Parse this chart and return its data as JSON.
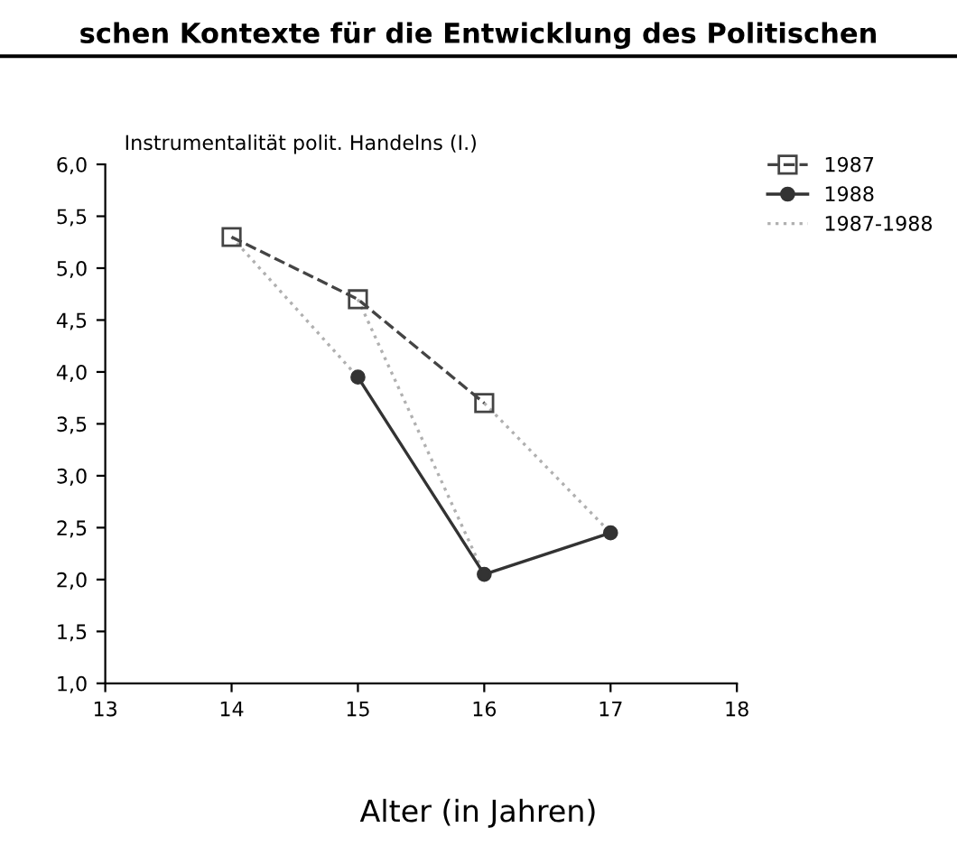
{
  "chart_data": {
    "type": "line",
    "title": "schen Kontexte für die Entwicklung des Politischen",
    "ylabel": "Instrumentalität polit. Handelns (I.)",
    "xlabel": "Alter (in Jahren)",
    "xlim": [
      13,
      18
    ],
    "xticks": [
      13,
      14,
      15,
      16,
      17,
      18
    ],
    "ylim": [
      1.0,
      6.0
    ],
    "yticks": [
      {
        "value": 1.0,
        "label": "1,0"
      },
      {
        "value": 1.5,
        "label": "1,5"
      },
      {
        "value": 2.0,
        "label": "2,0"
      },
      {
        "value": 2.5,
        "label": "2,5"
      },
      {
        "value": 3.0,
        "label": "3,0"
      },
      {
        "value": 3.5,
        "label": "3,5"
      },
      {
        "value": 4.0,
        "label": "4,0"
      },
      {
        "value": 4.5,
        "label": "4,5"
      },
      {
        "value": 5.0,
        "label": "5,0"
      },
      {
        "value": 5.5,
        "label": "5,5"
      },
      {
        "value": 6.0,
        "label": "6,0"
      }
    ],
    "grid": false,
    "legend": "top right",
    "series": [
      {
        "name": "1987-1988",
        "color": "#b0b0b0",
        "line_style": "dotted",
        "marker": "none",
        "x": [
          14,
          15
        ],
        "values": [
          5.3,
          3.95
        ]
      },
      {
        "color": "#b0b0b0",
        "line_style": "dotted",
        "marker": "none",
        "x": [
          15,
          16
        ],
        "values": [
          4.7,
          2.05
        ]
      },
      {
        "color": "#b0b0b0",
        "line_style": "dotted",
        "marker": "none",
        "x": [
          16,
          17
        ],
        "values": [
          3.7,
          2.45
        ]
      },
      {
        "name": "1988",
        "color": "#333333",
        "line_style": "solid",
        "marker": "circle",
        "x": [
          15,
          16,
          17
        ],
        "values": [
          3.95,
          2.05,
          2.45
        ]
      },
      {
        "name": "1987",
        "color": "#444444",
        "line_style": "dashed",
        "marker": "square",
        "x": [
          14,
          15,
          16
        ],
        "values": [
          5.3,
          4.7,
          3.7
        ]
      }
    ]
  }
}
